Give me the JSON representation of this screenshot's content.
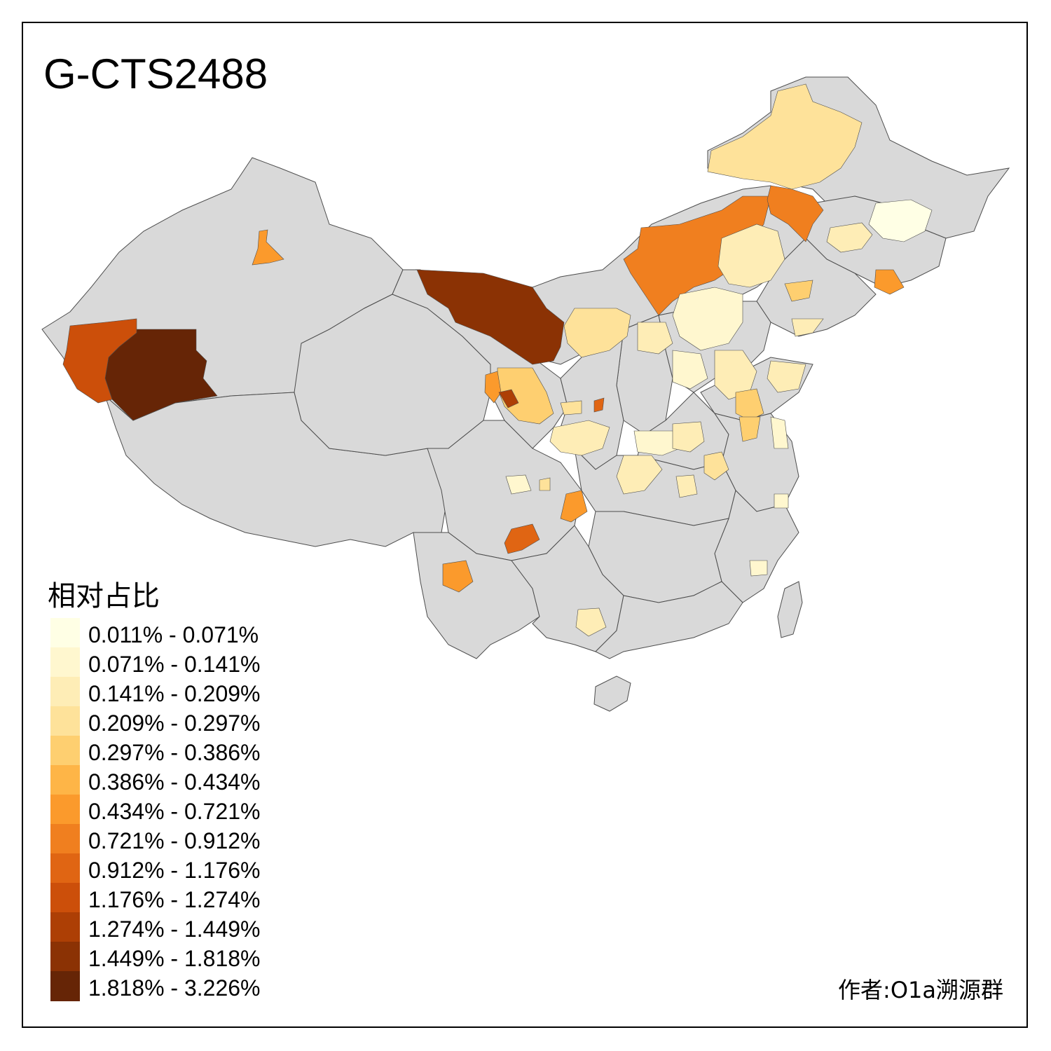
{
  "title": "G-CTS2488",
  "legend": {
    "title": "相对占比",
    "bins": [
      {
        "label": "0.011% - 0.071%",
        "color": "#FFFFE5"
      },
      {
        "label": "0.071% - 0.141%",
        "color": "#FFF7CF"
      },
      {
        "label": "0.141% - 0.209%",
        "color": "#FEEDB6"
      },
      {
        "label": "0.209% - 0.297%",
        "color": "#FEE29A"
      },
      {
        "label": "0.297% - 0.386%",
        "color": "#FECF70"
      },
      {
        "label": "0.386% - 0.434%",
        "color": "#FEB547"
      },
      {
        "label": "0.434% - 0.721%",
        "color": "#FB9A2C"
      },
      {
        "label": "0.721% - 0.912%",
        "color": "#F07F1F"
      },
      {
        "label": "0.912% - 1.176%",
        "color": "#E06513"
      },
      {
        "label": "1.176% - 1.274%",
        "color": "#CC4F0A"
      },
      {
        "label": "1.274% - 1.449%",
        "color": "#AD3F05"
      },
      {
        "label": "1.449% - 1.818%",
        "color": "#8B3204"
      },
      {
        "label": "1.818% - 3.226%",
        "color": "#662506"
      }
    ]
  },
  "credit": "作者:O1a溯源群",
  "colors": {
    "no_data": "#D9D9D9",
    "border": "#4D4D4D"
  }
}
